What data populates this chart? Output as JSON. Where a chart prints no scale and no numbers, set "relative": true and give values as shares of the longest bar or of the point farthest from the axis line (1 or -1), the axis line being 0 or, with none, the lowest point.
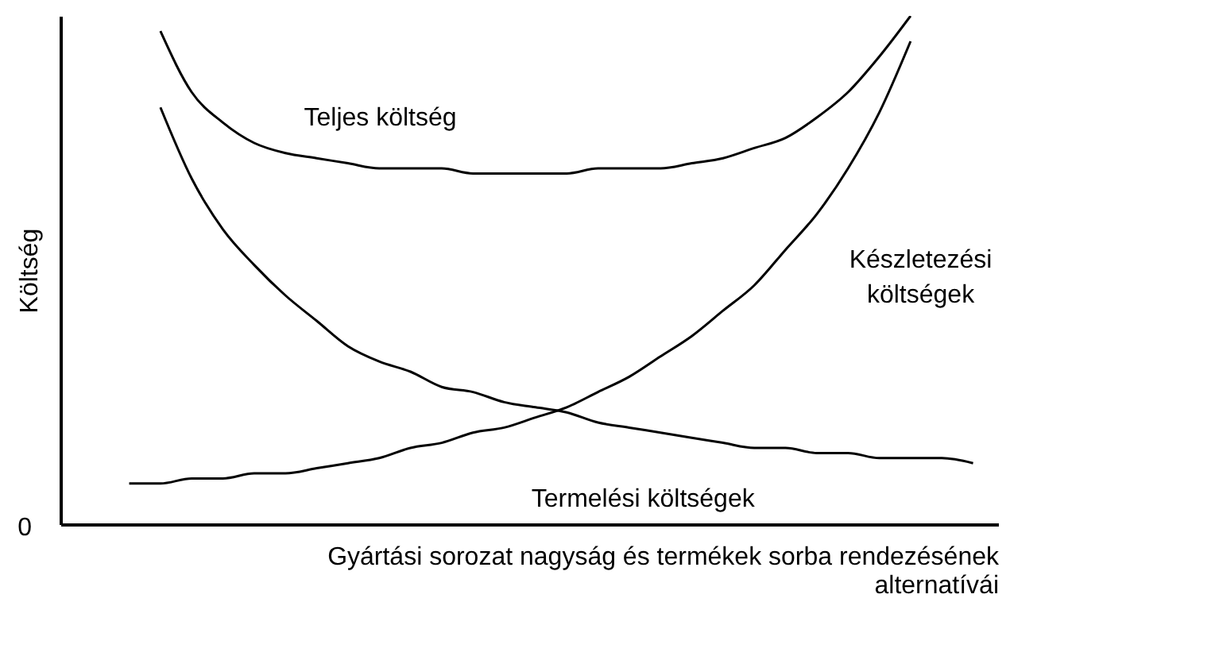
{
  "chart_data": {
    "type": "line",
    "relative": true,
    "xlabel": "Gyártási sorozat nagyság és termékek sorba rendezésének alternatívái",
    "ylabel": "Költség",
    "categories": [
      null,
      null,
      null,
      null,
      null,
      null,
      null,
      null,
      null,
      null,
      null,
      null,
      null,
      null,
      null,
      null,
      null,
      null,
      null,
      null,
      null,
      null,
      null,
      null,
      null,
      null,
      null,
      null
    ],
    "series": [
      {
        "name": "Teljes költség",
        "color": "#000000",
        "values": [
          null,
          0.97,
          0.85,
          0.79,
          0.75,
          0.73,
          0.72,
          0.71,
          0.7,
          0.7,
          0.7,
          0.69,
          0.69,
          0.69,
          0.69,
          0.7,
          0.7,
          0.7,
          0.71,
          0.72,
          0.74,
          0.76,
          0.8,
          0.85,
          0.92,
          1.0,
          null,
          null
        ]
      },
      {
        "name": "Készletezési költségek",
        "color": "#000000",
        "values": [
          0.08,
          0.08,
          0.09,
          0.09,
          0.1,
          0.1,
          0.11,
          0.12,
          0.13,
          0.15,
          0.16,
          0.18,
          0.19,
          0.21,
          0.23,
          0.26,
          0.29,
          0.33,
          0.37,
          0.42,
          0.47,
          0.54,
          0.61,
          0.7,
          0.81,
          0.95,
          null,
          null
        ]
      },
      {
        "name": "Termelési költségek",
        "color": "#000000",
        "values": [
          null,
          0.82,
          0.68,
          0.58,
          0.51,
          0.45,
          0.4,
          0.35,
          0.32,
          0.3,
          0.27,
          0.26,
          0.24,
          0.23,
          0.22,
          0.2,
          0.19,
          0.18,
          0.17,
          0.16,
          0.15,
          0.15,
          0.14,
          0.14,
          0.13,
          0.13,
          0.13,
          0.12
        ]
      }
    ],
    "annotations": [
      "0"
    ],
    "grid": false,
    "legend": false,
    "line_style": "solid",
    "marker": "none"
  }
}
